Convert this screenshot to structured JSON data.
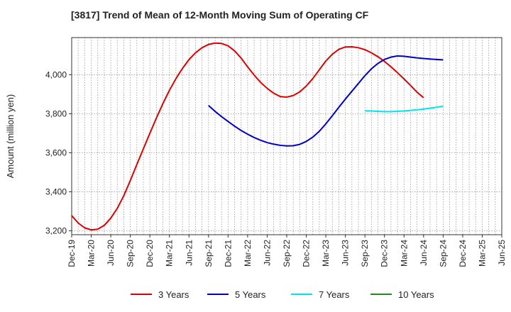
{
  "chart_data": {
    "type": "line",
    "title": "[3817]  Trend of Mean of 12-Month Moving Sum of Operating CF",
    "xlabel": "",
    "ylabel": "Amount (million yen)",
    "ylim": [
      3180,
      4190
    ],
    "y_ticks": [
      3200,
      3400,
      3600,
      3800,
      4000
    ],
    "y_tick_labels": [
      "3,200",
      "3,400",
      "3,600",
      "3,800",
      "4,000"
    ],
    "x_range": [
      0,
      66
    ],
    "x_tick_positions": [
      0,
      3,
      6,
      9,
      12,
      15,
      18,
      21,
      24,
      27,
      30,
      33,
      36,
      39,
      42,
      45,
      48,
      51,
      54,
      57,
      60,
      63,
      66
    ],
    "x_tick_labels": [
      "Dec-19",
      "Mar-20",
      "Jun-20",
      "Sep-20",
      "Dec-20",
      "Mar-21",
      "Jun-21",
      "Sep-21",
      "Dec-21",
      "Mar-22",
      "Jun-22",
      "Sep-22",
      "Dec-22",
      "Mar-23",
      "Jun-23",
      "Sep-23",
      "Dec-23",
      "Mar-24",
      "Jun-24",
      "Sep-24",
      "Dec-24",
      "Mar-25",
      "Jun-25"
    ],
    "x_minor_step": 1,
    "grid": true,
    "legend_position": "bottom",
    "series": [
      {
        "name": "3 Years",
        "color": "#dd0000",
        "points": [
          [
            0,
            3278
          ],
          [
            1,
            3240
          ],
          [
            2,
            3215
          ],
          [
            3,
            3205
          ],
          [
            4,
            3208
          ],
          [
            5,
            3228
          ],
          [
            6,
            3265
          ],
          [
            7,
            3315
          ],
          [
            8,
            3380
          ],
          [
            9,
            3458
          ],
          [
            10,
            3540
          ],
          [
            11,
            3620
          ],
          [
            12,
            3700
          ],
          [
            13,
            3778
          ],
          [
            14,
            3852
          ],
          [
            15,
            3920
          ],
          [
            16,
            3980
          ],
          [
            17,
            4032
          ],
          [
            18,
            4077
          ],
          [
            19,
            4112
          ],
          [
            20,
            4138
          ],
          [
            21,
            4155
          ],
          [
            22,
            4162
          ],
          [
            23,
            4160
          ],
          [
            24,
            4148
          ],
          [
            25,
            4122
          ],
          [
            26,
            4085
          ],
          [
            27,
            4040
          ],
          [
            28,
            3998
          ],
          [
            29,
            3960
          ],
          [
            30,
            3930
          ],
          [
            31,
            3905
          ],
          [
            32,
            3888
          ],
          [
            33,
            3885
          ],
          [
            34,
            3893
          ],
          [
            35,
            3912
          ],
          [
            36,
            3942
          ],
          [
            37,
            3980
          ],
          [
            38,
            4025
          ],
          [
            39,
            4070
          ],
          [
            40,
            4105
          ],
          [
            41,
            4130
          ],
          [
            42,
            4142
          ],
          [
            43,
            4143
          ],
          [
            44,
            4138
          ],
          [
            45,
            4128
          ],
          [
            46,
            4112
          ],
          [
            47,
            4092
          ],
          [
            48,
            4068
          ],
          [
            49,
            4040
          ],
          [
            50,
            4010
          ],
          [
            51,
            3978
          ],
          [
            52,
            3945
          ],
          [
            53,
            3910
          ],
          [
            54,
            3882
          ]
        ]
      },
      {
        "name": "5 Years",
        "color": "#0000cc",
        "points": [
          [
            21,
            3842
          ],
          [
            22,
            3812
          ],
          [
            23,
            3785
          ],
          [
            24,
            3760
          ],
          [
            25,
            3736
          ],
          [
            26,
            3714
          ],
          [
            27,
            3695
          ],
          [
            28,
            3678
          ],
          [
            29,
            3664
          ],
          [
            30,
            3652
          ],
          [
            31,
            3644
          ],
          [
            32,
            3638
          ],
          [
            33,
            3635
          ],
          [
            34,
            3636
          ],
          [
            35,
            3643
          ],
          [
            36,
            3658
          ],
          [
            37,
            3680
          ],
          [
            38,
            3710
          ],
          [
            39,
            3748
          ],
          [
            40,
            3790
          ],
          [
            41,
            3833
          ],
          [
            42,
            3875
          ],
          [
            43,
            3915
          ],
          [
            44,
            3955
          ],
          [
            45,
            3995
          ],
          [
            46,
            4030
          ],
          [
            47,
            4058
          ],
          [
            48,
            4078
          ],
          [
            49,
            4090
          ],
          [
            50,
            4096
          ],
          [
            51,
            4094
          ],
          [
            52,
            4090
          ],
          [
            53,
            4086
          ],
          [
            54,
            4083
          ],
          [
            55,
            4080
          ],
          [
            56,
            4078
          ],
          [
            57,
            4076
          ]
        ]
      },
      {
        "name": "7 Years",
        "color": "#00e5ee",
        "points": [
          [
            45,
            3815
          ],
          [
            46,
            3814
          ],
          [
            47,
            3812
          ],
          [
            48,
            3811
          ],
          [
            49,
            3811
          ],
          [
            50,
            3812
          ],
          [
            51,
            3814
          ],
          [
            52,
            3817
          ],
          [
            53,
            3820
          ],
          [
            54,
            3824
          ],
          [
            55,
            3828
          ],
          [
            56,
            3833
          ],
          [
            57,
            3839
          ]
        ]
      },
      {
        "name": "10 Years",
        "color": "#228b22",
        "points": []
      }
    ]
  }
}
